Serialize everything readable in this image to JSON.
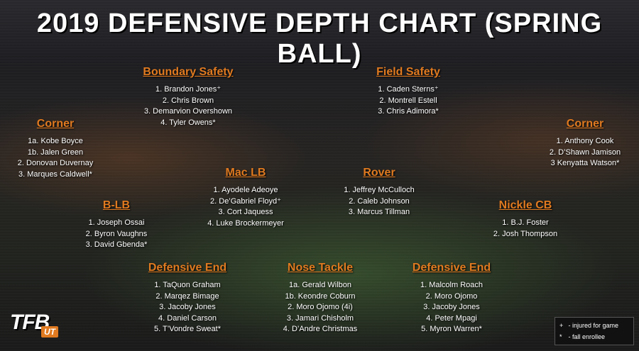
{
  "title": "2019 DEFENSIVE DEPTH CHART (SPRING BALL)",
  "logo": {
    "main": "TFB",
    "sub": "UT"
  },
  "groups": [
    {
      "key": "boundary_safety",
      "position": "Boundary Safety",
      "players": [
        "1. Brandon Jones⁺",
        "2. Chris Brown",
        "3. Demarvion Overshown",
        "4. Tyler Owens*"
      ]
    },
    {
      "key": "field_safety",
      "position": "Field Safety",
      "players": [
        "1. Caden Sterns⁺",
        "2. Montrell Estell",
        "3. Chris Adimora*"
      ]
    },
    {
      "key": "corner_left",
      "position": "Corner",
      "players": [
        "1a. Kobe Boyce",
        "1b. Jalen Green",
        "2. Donovan Duvernay",
        "3. Marques Caldwell*"
      ]
    },
    {
      "key": "corner_right",
      "position": "Corner",
      "players": [
        "1. Anthony Cook",
        "2. D’Shawn Jamison",
        "3 Kenyatta Watson*"
      ]
    },
    {
      "key": "mac_lb",
      "position": "Mac LB",
      "players": [
        "1. Ayodele Adeoye",
        "2. De’Gabriel Floyd⁺",
        "3. Cort Jaquess",
        "4. Luke Brockermeyer"
      ]
    },
    {
      "key": "rover",
      "position": "Rover",
      "players": [
        "1. Jeffrey McCulloch",
        "2. Caleb Johnson",
        "3. Marcus Tillman"
      ]
    },
    {
      "key": "b_lb",
      "position": "B-LB",
      "players": [
        "1. Joseph Ossai",
        "2. Byron Vaughns",
        "3. David Gbenda*"
      ]
    },
    {
      "key": "nickle_cb",
      "position": "Nickle CB",
      "players": [
        "1. B.J. Foster",
        "2. Josh Thompson"
      ]
    },
    {
      "key": "defensive_end_left",
      "position": "Defensive End",
      "players": [
        "1. TaQuon Graham",
        "2. Marqez Bimage",
        "3. Jacoby Jones",
        "4. Daniel Carson",
        "5. T’Vondre Sweat*"
      ]
    },
    {
      "key": "nose_tackle",
      "position": "Nose Tackle",
      "players": [
        "1a. Gerald Wilbon",
        "1b. Keondre Coburn",
        "2. Moro Ojomo (4i)",
        "3. Jamari Chisholm",
        "4. D’Andre Christmas"
      ]
    },
    {
      "key": "defensive_end_right",
      "position": "Defensive End",
      "players": [
        "1. Malcolm Roach",
        "2. Moro Ojomo",
        "3. Jacoby Jones",
        "4. Peter Mpagi",
        "5. Myron Warren*"
      ]
    }
  ],
  "legend": [
    {
      "symbol": "+",
      "text": "-    injured for game"
    },
    {
      "symbol": "*",
      "text": "-    fall enrollee"
    }
  ]
}
